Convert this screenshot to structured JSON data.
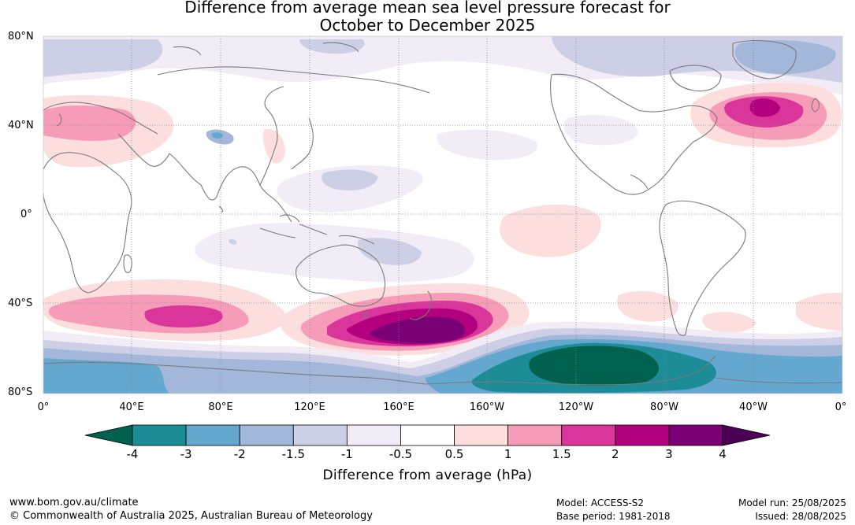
{
  "title_line1": "Difference from average mean sea level pressure forecast for",
  "title_line2": "October to December 2025",
  "lat_labels": [
    "80°N",
    "40°N",
    "0°",
    "40°S",
    "80°S"
  ],
  "lon_labels": [
    "0°",
    "40°E",
    "80°E",
    "120°E",
    "160°E",
    "160°W",
    "120°W",
    "80°W",
    "40°W",
    "0°"
  ],
  "colorbar": {
    "title": "Difference from average (hPa)",
    "tick_labels": [
      "-4",
      "-3",
      "-2",
      "-1.5",
      "-1",
      "-0.5",
      "0.5",
      "1",
      "1.5",
      "2",
      "3",
      "4"
    ],
    "low_extend_color": "#00614f",
    "high_extend_color": "#4b0055",
    "colors": [
      "#1c8c97",
      "#64a7cf",
      "#a2b7d9",
      "#cdcfe6",
      "#f1ecf5",
      "#ffffff",
      "#fcdede",
      "#f69cb9",
      "#d9359b",
      "#b2007f",
      "#7a0075"
    ]
  },
  "colors": {
    "ocean_neutral": "#ffffff",
    "coastline": "#7a7a7a",
    "grid": "#888888"
  },
  "footer": {
    "website": "www.bom.gov.au/climate",
    "copyright": "© Commonwealth of Australia 2025, Australian Bureau of Meteorology",
    "model": "Model: ACCESS-S2",
    "base_period": "Base period: 1981-2018",
    "model_run": "Model run: 25/08/2025",
    "issued": "Issued: 28/08/2025"
  }
}
